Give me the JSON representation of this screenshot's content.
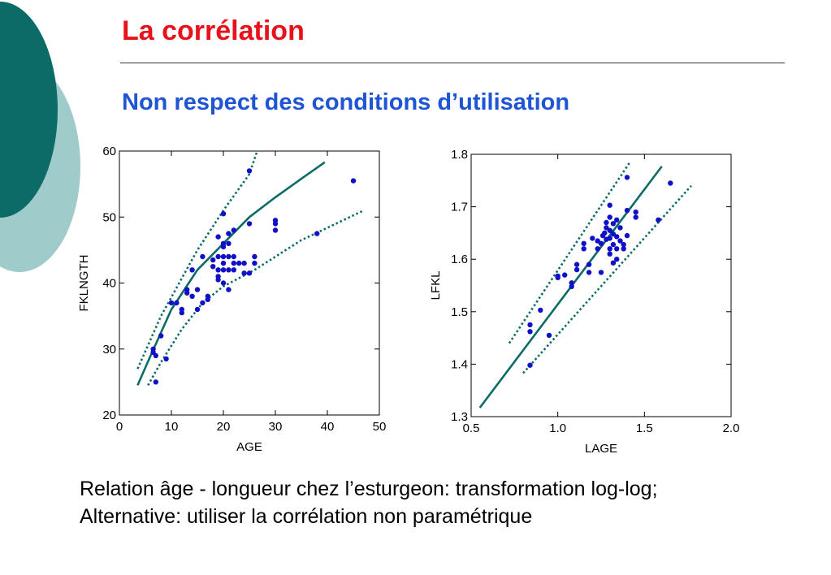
{
  "slide": {
    "title": "La corrélation",
    "subtitle": "Non respect des conditions d’utilisation",
    "caption_lines": [
      "Relation âge - longueur chez l’esturgeon: transformation log-log;",
      "Alternative: utiliser la corrélation non paramétrique"
    ],
    "colors": {
      "title": "#e8121b",
      "subtitle": "#1e55d4",
      "deco_dark": "#0d6b67",
      "deco_light": "#9fcbca"
    }
  },
  "chart_data": [
    {
      "type": "scatter",
      "title": "",
      "xlabel": "AGE",
      "ylabel": "FKLNGTH",
      "xlim": [
        0,
        50
      ],
      "ylim": [
        20,
        60
      ],
      "xticks": [
        0,
        10,
        20,
        30,
        40,
        50
      ],
      "yticks": [
        20,
        30,
        40,
        50,
        60
      ],
      "xtick_labels": [
        "0",
        "10",
        "20",
        "30",
        "40",
        "50"
      ],
      "ytick_labels": [
        "20",
        "30",
        "40",
        "50",
        "60"
      ],
      "point_color": "#1010c8",
      "line_color": "#0d6b67",
      "points": [
        [
          7,
          25
        ],
        [
          6.5,
          29.5
        ],
        [
          6.5,
          30
        ],
        [
          7,
          29
        ],
        [
          8,
          32
        ],
        [
          9,
          28.5
        ],
        [
          10,
          37
        ],
        [
          11,
          37
        ],
        [
          12,
          36
        ],
        [
          12,
          35.5
        ],
        [
          13,
          38.5
        ],
        [
          13,
          39
        ],
        [
          14,
          42
        ],
        [
          14,
          38
        ],
        [
          15,
          39
        ],
        [
          15,
          36
        ],
        [
          16,
          37
        ],
        [
          16,
          44
        ],
        [
          17,
          38
        ],
        [
          17,
          37.5
        ],
        [
          18,
          42.5
        ],
        [
          18,
          43.5
        ],
        [
          19,
          44
        ],
        [
          19,
          47
        ],
        [
          19,
          42
        ],
        [
          19,
          41
        ],
        [
          19,
          40.5
        ],
        [
          20,
          40
        ],
        [
          20,
          42
        ],
        [
          20,
          43
        ],
        [
          20,
          44
        ],
        [
          20,
          45.5
        ],
        [
          20,
          46
        ],
        [
          20,
          50.5
        ],
        [
          21,
          39
        ],
        [
          21,
          42
        ],
        [
          21,
          44
        ],
        [
          21,
          46
        ],
        [
          21,
          47.5
        ],
        [
          22,
          48
        ],
        [
          22,
          44
        ],
        [
          22,
          42
        ],
        [
          22,
          43
        ],
        [
          23,
          43
        ],
        [
          24,
          41.5
        ],
        [
          24,
          43
        ],
        [
          25,
          41.5
        ],
        [
          25,
          49
        ],
        [
          25,
          57
        ],
        [
          26,
          43
        ],
        [
          26,
          44
        ],
        [
          30,
          48
        ],
        [
          30,
          49
        ],
        [
          30,
          49.5
        ],
        [
          38,
          47.5
        ],
        [
          45,
          55.5
        ]
      ],
      "fit_line": [
        [
          3.5,
          24.5
        ],
        [
          6,
          29
        ],
        [
          10,
          36
        ],
        [
          15,
          42
        ],
        [
          20,
          46
        ],
        [
          25,
          50
        ],
        [
          30,
          53
        ],
        [
          35,
          55.8
        ],
        [
          39.5,
          58.3
        ]
      ],
      "upper_band": [
        [
          3.5,
          27
        ],
        [
          8,
          35
        ],
        [
          15,
          45
        ],
        [
          20,
          51
        ],
        [
          25,
          56.5
        ],
        [
          26.5,
          60
        ]
      ],
      "lower_band": [
        [
          5.5,
          24.5
        ],
        [
          8,
          28
        ],
        [
          12,
          33
        ],
        [
          16,
          37
        ],
        [
          20,
          39.5
        ],
        [
          26,
          42
        ],
        [
          35,
          46.5
        ],
        [
          47,
          51
        ]
      ]
    },
    {
      "type": "scatter",
      "title": "",
      "xlabel": "LAGE",
      "ylabel": "LFKL",
      "xlim": [
        0.5,
        2.0
      ],
      "ylim": [
        1.3,
        1.8
      ],
      "xticks": [
        0.5,
        1.0,
        1.5,
        2.0
      ],
      "yticks": [
        1.3,
        1.4,
        1.5,
        1.6,
        1.7,
        1.8
      ],
      "xtick_labels": [
        "0.5",
        "1.0",
        "1.5",
        "2.0"
      ],
      "ytick_labels": [
        "1.3",
        "1.4",
        "1.5",
        "1.6",
        "1.7",
        "1.8"
      ],
      "point_color": "#1010c8",
      "line_color": "#0d6b67",
      "points": [
        [
          0.84,
          1.398
        ],
        [
          0.84,
          1.462
        ],
        [
          0.84,
          1.475
        ],
        [
          0.9,
          1.503
        ],
        [
          0.95,
          1.455
        ],
        [
          1.0,
          1.568
        ],
        [
          1.0,
          1.565
        ],
        [
          1.04,
          1.57
        ],
        [
          1.08,
          1.548
        ],
        [
          1.08,
          1.555
        ],
        [
          1.11,
          1.59
        ],
        [
          1.11,
          1.58
        ],
        [
          1.15,
          1.62
        ],
        [
          1.15,
          1.63
        ],
        [
          1.18,
          1.575
        ],
        [
          1.18,
          1.59
        ],
        [
          1.2,
          1.64
        ],
        [
          1.23,
          1.62
        ],
        [
          1.23,
          1.635
        ],
        [
          1.25,
          1.575
        ],
        [
          1.25,
          1.63
        ],
        [
          1.26,
          1.645
        ],
        [
          1.27,
          1.65
        ],
        [
          1.28,
          1.638
        ],
        [
          1.28,
          1.66
        ],
        [
          1.28,
          1.67
        ],
        [
          1.3,
          1.61
        ],
        [
          1.3,
          1.62
        ],
        [
          1.3,
          1.64
        ],
        [
          1.3,
          1.655
        ],
        [
          1.3,
          1.68
        ],
        [
          1.3,
          1.703
        ],
        [
          1.32,
          1.593
        ],
        [
          1.32,
          1.628
        ],
        [
          1.32,
          1.648
        ],
        [
          1.32,
          1.668
        ],
        [
          1.34,
          1.6
        ],
        [
          1.34,
          1.62
        ],
        [
          1.34,
          1.643
        ],
        [
          1.34,
          1.675
        ],
        [
          1.36,
          1.635
        ],
        [
          1.36,
          1.66
        ],
        [
          1.38,
          1.62
        ],
        [
          1.38,
          1.628
        ],
        [
          1.4,
          1.645
        ],
        [
          1.4,
          1.693
        ],
        [
          1.4,
          1.756
        ],
        [
          1.45,
          1.68
        ],
        [
          1.45,
          1.69
        ],
        [
          1.58,
          1.675
        ],
        [
          1.65,
          1.745
        ]
      ],
      "fit_line": [
        [
          0.55,
          1.317
        ],
        [
          1.6,
          1.777
        ]
      ],
      "upper_band": [
        [
          0.72,
          1.44
        ],
        [
          1.42,
          1.787
        ]
      ],
      "lower_band": [
        [
          0.8,
          1.383
        ],
        [
          1.77,
          1.74
        ]
      ]
    }
  ]
}
